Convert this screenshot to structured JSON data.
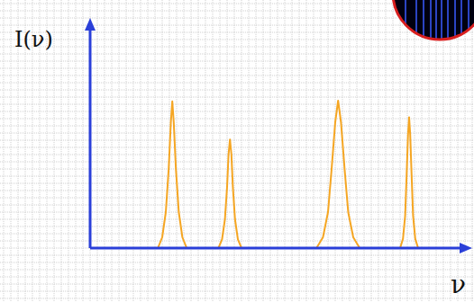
{
  "chart_data": {
    "type": "line",
    "xlabel": "ν",
    "ylabel": "I(ν)",
    "x": [
      9.4,
      10.0,
      10.5,
      10.9,
      11.2,
      11.4,
      11.6,
      11.9,
      12.3,
      12.8,
      13.4,
      15.5,
      17.8,
      18.3,
      18.7,
      19.0,
      19.2,
      19.4,
      19.6,
      19.8,
      20.1,
      20.5,
      21.0,
      26.0,
      31.4,
      32.3,
      33.0,
      33.5,
      34.0,
      34.4,
      34.8,
      35.3,
      35.8,
      36.5,
      37.4,
      40.0,
      43.0,
      43.4,
      43.7,
      43.9,
      44.1,
      44.25,
      44.4,
      44.6,
      44.8,
      45.1,
      45.5
    ],
    "values": [
      0,
      1.5,
      5,
      11,
      17.5,
      20.4,
      17.5,
      11,
      5,
      1.5,
      0,
      null,
      0,
      1.2,
      4,
      8.5,
      13,
      15.1,
      13,
      8.5,
      4,
      1.2,
      0,
      null,
      0,
      1.5,
      5,
      11,
      17.5,
      20.5,
      17.5,
      11,
      5,
      1.5,
      0,
      null,
      0,
      1.3,
      4.5,
      10,
      15.8,
      18.2,
      15.8,
      10,
      4.5,
      1.3,
      0
    ],
    "color": "#f5a623",
    "xlim": [
      0,
      52
    ],
    "ylim": [
      0,
      31
    ],
    "grid": true,
    "tick_labels": false
  }
}
